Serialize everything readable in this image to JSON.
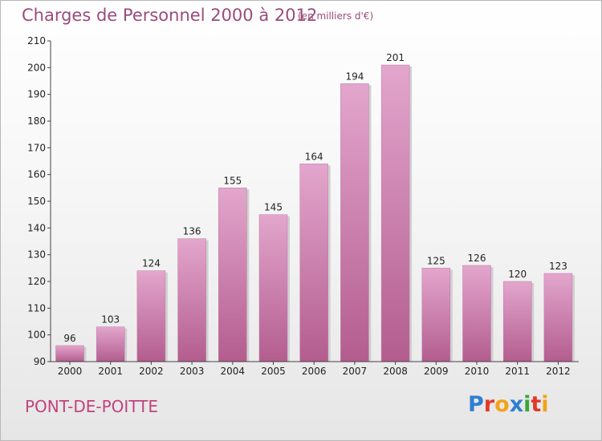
{
  "header": {
    "title": "Charges de Personnel 2000 à 2012",
    "unit": "(en milliers d'€)"
  },
  "footer": {
    "commune": "PONT-DE-POITTE",
    "logo": "Proxiti"
  },
  "colors": {
    "bar_top": "#e3a6cd",
    "bar_bottom": "#b35d8e",
    "title": "#9b4b7a",
    "commune": "#c2427f"
  },
  "chart_data": {
    "type": "bar",
    "title": "Charges de Personnel 2000 à 2012",
    "subtitle": "(en milliers d'€)",
    "categories": [
      "2000",
      "2001",
      "2002",
      "2003",
      "2004",
      "2005",
      "2006",
      "2007",
      "2008",
      "2009",
      "2010",
      "2011",
      "2012"
    ],
    "values": [
      96,
      103,
      124,
      136,
      155,
      145,
      164,
      194,
      201,
      125,
      126,
      120,
      123
    ],
    "ylim": [
      90,
      210
    ],
    "yticks": [
      90,
      100,
      110,
      120,
      130,
      140,
      150,
      160,
      170,
      180,
      190,
      200,
      210
    ],
    "grid": false,
    "legend": "none"
  }
}
